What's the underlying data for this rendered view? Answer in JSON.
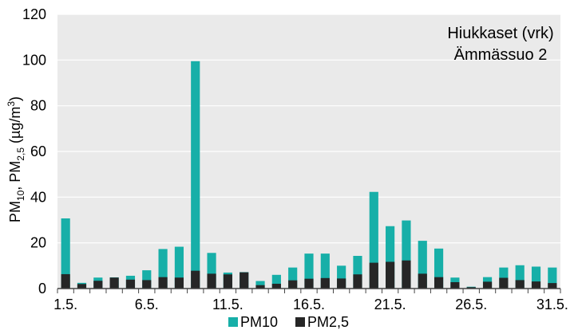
{
  "chart_data": {
    "type": "bar",
    "stacked": "overlay",
    "title_lines": [
      "Hiukkaset (vrk)",
      "Ämmässuo 2"
    ],
    "ylabel": {
      "parts": [
        {
          "text": "PM",
          "sub": false
        },
        {
          "text": "10",
          "sub": true
        },
        {
          "text": ", PM",
          "sub": false
        },
        {
          "text": "2,5",
          "sub": true
        },
        {
          "text": " (µg/m",
          "sub": false
        },
        {
          "text": "3",
          "sub": "sup"
        },
        {
          "text": ")",
          "sub": false
        }
      ]
    },
    "ylim": [
      0,
      120
    ],
    "yticks": [
      0,
      20,
      40,
      60,
      80,
      100,
      120
    ],
    "grid": true,
    "legend_position": "bottom",
    "categories": [
      "1.5.",
      "2.5.",
      "3.5.",
      "4.5.",
      "5.5.",
      "6.5.",
      "7.5.",
      "8.5.",
      "9.5.",
      "10.5.",
      "11.5.",
      "12.5.",
      "13.5.",
      "14.5.",
      "15.5.",
      "16.5.",
      "17.5.",
      "18.5.",
      "19.5.",
      "20.5.",
      "21.5.",
      "22.5.",
      "23.5.",
      "24.5.",
      "25.5.",
      "26.5.",
      "27.5.",
      "28.5.",
      "29.5.",
      "30.5.",
      "31.5."
    ],
    "xtick_labels": [
      "1.5.",
      "",
      "",
      "",
      "",
      "6.5.",
      "",
      "",
      "",
      "",
      "11.5.",
      "",
      "",
      "",
      "",
      "16.5.",
      "",
      "",
      "",
      "",
      "21.5.",
      "",
      "",
      "",
      "",
      "26.5.",
      "",
      "",
      "",
      "",
      "31.5."
    ],
    "series": [
      {
        "name": "PM10",
        "color": "#17AFA8",
        "values": [
          30.7,
          2.5,
          4.8,
          4.9,
          5.6,
          8.0,
          17.3,
          18.3,
          99.5,
          15.6,
          7.0,
          7.2,
          3.3,
          6.0,
          9.2,
          15.3,
          15.3,
          10.0,
          14.3,
          42.3,
          27.3,
          29.8,
          20.9,
          17.5,
          4.8,
          0.8,
          5.0,
          9.2,
          10.2,
          9.6,
          9.2
        ]
      },
      {
        "name": "PM2,5",
        "color": "#262626",
        "values": [
          6.3,
          2.0,
          3.4,
          4.8,
          3.9,
          3.7,
          5.0,
          4.8,
          7.8,
          6.5,
          6.2,
          7.1,
          1.5,
          2.1,
          3.6,
          4.3,
          4.6,
          4.4,
          6.2,
          11.3,
          11.7,
          12.3,
          6.5,
          5.0,
          2.8,
          0.6,
          3.0,
          4.7,
          3.7,
          3.1,
          2.4
        ]
      }
    ]
  }
}
